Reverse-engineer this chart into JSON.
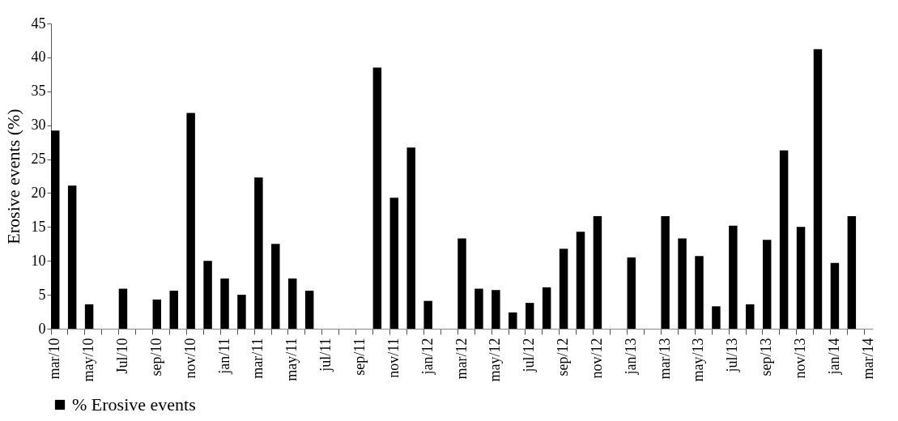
{
  "chart_data": {
    "type": "bar",
    "ylabel": "Erosive events (%)",
    "categories": [
      "mar/10",
      null,
      "may/10",
      null,
      "Jul/10",
      null,
      "sep/10",
      null,
      "nov/10",
      null,
      "jan/11",
      null,
      "mar/11",
      null,
      "may/11",
      null,
      "jul/11",
      null,
      "sep/11",
      null,
      "nov/11",
      null,
      "jan/12",
      null,
      "mar/12",
      null,
      "may/12",
      null,
      "jul/12",
      null,
      "sep/12",
      null,
      "nov/12",
      null,
      "jan/13",
      null,
      "mar/13",
      null,
      "may/13",
      null,
      "jul/13",
      null,
      "sep/13",
      null,
      "nov/13",
      null,
      "jan/14",
      null,
      "mar/14"
    ],
    "series": [
      {
        "name": "% Erosive events",
        "color": "#000000",
        "values": [
          29.2,
          21.1,
          3.6,
          0,
          5.9,
          0,
          4.3,
          5.6,
          31.8,
          10.0,
          7.4,
          5.0,
          22.3,
          12.5,
          7.4,
          5.6,
          0,
          0,
          0,
          38.5,
          19.3,
          26.7,
          4.1,
          0,
          13.3,
          5.9,
          5.7,
          2.4,
          3.8,
          6.1,
          11.8,
          14.3,
          16.6,
          0,
          10.5,
          0,
          16.6,
          13.3,
          10.7,
          3.3,
          15.2,
          3.6,
          13.1,
          26.3,
          15.0,
          41.2,
          9.7,
          16.6,
          null
        ]
      }
    ],
    "ylim": [
      0,
      45
    ],
    "yticks": [
      0,
      5,
      10,
      15,
      20,
      25,
      30,
      35,
      40,
      45
    ],
    "grid": false,
    "legend": "bottom"
  }
}
